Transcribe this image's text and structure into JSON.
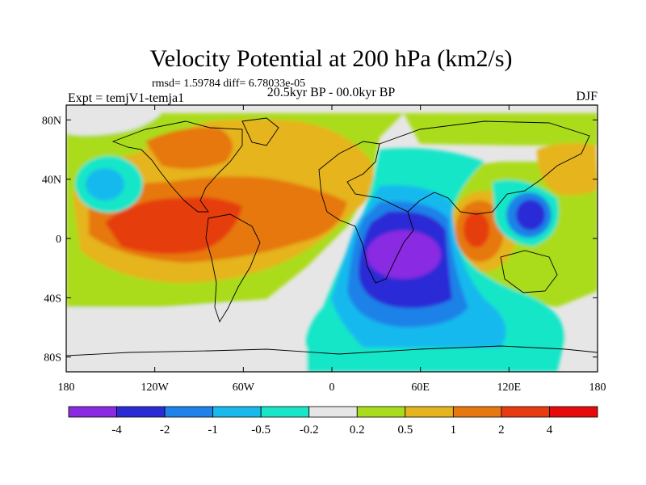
{
  "chart_data": {
    "type": "heatmap",
    "title": "Velocity Potential at 200 hPa (km2/s)",
    "stats_label": "rmsd= 1.59784 diff= 6.78033e-05",
    "left_label": "Expt = temjV1-temja1",
    "center_label": "20.5kyr BP - 00.0kyr BP",
    "right_label": "DJF",
    "x_ticks": [
      {
        "value": -180,
        "label": "180"
      },
      {
        "value": -120,
        "label": "120W"
      },
      {
        "value": -60,
        "label": "60W"
      },
      {
        "value": 0,
        "label": "0"
      },
      {
        "value": 60,
        "label": "60E"
      },
      {
        "value": 120,
        "label": "120E"
      },
      {
        "value": 180,
        "label": "180"
      }
    ],
    "y_ticks": [
      {
        "value": 80,
        "label": "80N"
      },
      {
        "value": 40,
        "label": "40N"
      },
      {
        "value": 0,
        "label": "0"
      },
      {
        "value": -40,
        "label": "40S"
      },
      {
        "value": -80,
        "label": "80S"
      }
    ],
    "xlim": [
      -180,
      180
    ],
    "ylim": [
      -90,
      90
    ],
    "colorbar": {
      "levels": [
        "-4",
        "-2",
        "-1",
        "-0.5",
        "-0.2",
        "0.2",
        "0.5",
        "1",
        "2",
        "4"
      ],
      "colors": [
        "#8a2be2",
        "#2b2bd6",
        "#1e82e8",
        "#19b9ee",
        "#19e6c8",
        "#e6e6e6",
        "#aadc1e",
        "#e6b41e",
        "#e6780f",
        "#e63c0f",
        "#e60a0a"
      ]
    },
    "field": [
      {
        "lon": 95,
        "lat": 2,
        "level": "3",
        "name": "maritime-continent-max"
      },
      {
        "lon": -110,
        "lat": 5,
        "level": "3",
        "name": "eastern-pacific-max"
      },
      {
        "lon": 50,
        "lat": -5,
        "level": "-3",
        "name": "indian-ocean-min"
      },
      {
        "lon": 135,
        "lat": 15,
        "level": "-3",
        "name": "west-pacific-min"
      },
      {
        "lon": -160,
        "lat": 40,
        "level": "-1",
        "name": "north-pacific-min"
      }
    ]
  }
}
